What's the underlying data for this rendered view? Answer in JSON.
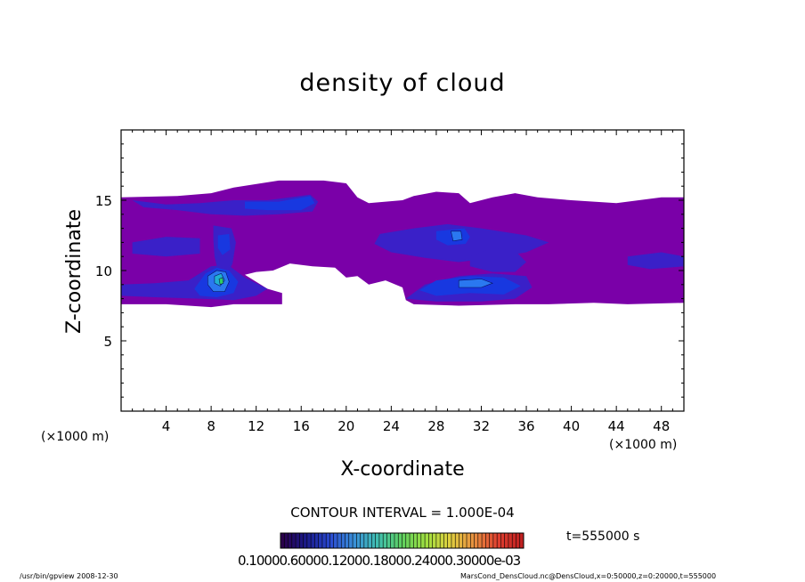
{
  "chart_data": {
    "type": "heatmap",
    "title": "density of cloud",
    "xlabel": "X-coordinate",
    "ylabel": "Z-coordinate",
    "x_unit": "(×1000 m)",
    "y_unit": "(×1000 m)",
    "xlim": [
      0,
      50
    ],
    "ylim": [
      0,
      20
    ],
    "x_ticks": [
      4,
      8,
      12,
      16,
      20,
      24,
      28,
      32,
      36,
      40,
      44,
      48
    ],
    "y_ticks": [
      5,
      10,
      15
    ],
    "contour_interval": "CONTOUR INTERVAL = 1.000E-04",
    "time_label": "t=555000 s",
    "colorbar_labels": "0.10000.60000.12000.18000.24000.30000e-03",
    "colors": {
      "base": "#7a00a8",
      "level2": "#3a20c8",
      "level3": "#1838e0",
      "level4": "#2a78f0",
      "level5": "#20b0d0",
      "level6": "#30d060"
    },
    "colorbar_colors": [
      "#2a004a",
      "#1a1a8a",
      "#2a4ad0",
      "#3a90d8",
      "#40c0b0",
      "#60d060",
      "#a0e040",
      "#e0d040",
      "#e89040",
      "#e04030",
      "#c02020"
    ],
    "regions": [
      {
        "level": 1,
        "poly": [
          [
            0,
            15.2
          ],
          [
            5,
            15.3
          ],
          [
            8,
            15.5
          ],
          [
            10,
            15.9
          ],
          [
            14,
            16.4
          ],
          [
            18,
            16.4
          ],
          [
            20,
            16.2
          ],
          [
            21,
            15.2
          ],
          [
            22,
            14.8
          ],
          [
            25,
            15.0
          ],
          [
            26,
            15.3
          ],
          [
            28,
            15.6
          ],
          [
            30,
            15.5
          ],
          [
            31,
            14.8
          ],
          [
            33,
            15.2
          ],
          [
            35,
            15.5
          ],
          [
            37,
            15.2
          ],
          [
            40,
            15.0
          ],
          [
            44,
            14.8
          ],
          [
            48,
            15.2
          ],
          [
            50,
            15.2
          ],
          [
            50,
            7.7
          ],
          [
            45,
            7.6
          ],
          [
            42,
            7.7
          ],
          [
            38,
            7.6
          ],
          [
            35,
            7.6
          ],
          [
            30,
            7.5
          ],
          [
            26,
            7.6
          ],
          [
            25.3,
            7.9
          ],
          [
            25.0,
            8.8
          ],
          [
            23.5,
            9.3
          ],
          [
            22,
            9.0
          ],
          [
            21,
            9.6
          ],
          [
            20,
            9.5
          ],
          [
            19,
            10.2
          ],
          [
            17,
            10.3
          ],
          [
            15,
            10.5
          ],
          [
            13.5,
            10.0
          ],
          [
            12,
            9.9
          ],
          [
            11,
            9.7
          ],
          [
            13,
            8.7
          ],
          [
            14.3,
            8.4
          ],
          [
            14.3,
            7.6
          ],
          [
            10,
            7.6
          ],
          [
            8,
            7.4
          ],
          [
            4,
            7.6
          ],
          [
            0,
            7.6
          ]
        ]
      },
      {
        "level": 2,
        "poly": [
          [
            1,
            15.0
          ],
          [
            4,
            14.7
          ],
          [
            7,
            14.8
          ],
          [
            10,
            15.0
          ],
          [
            13,
            15.0
          ],
          [
            15,
            15.2
          ],
          [
            16.8,
            15.4
          ],
          [
            17.5,
            14.9
          ],
          [
            17,
            14.2
          ],
          [
            14,
            14.0
          ],
          [
            11,
            13.9
          ],
          [
            8,
            14.0
          ],
          [
            5,
            14.3
          ],
          [
            2,
            14.5
          ]
        ]
      },
      {
        "level": 2,
        "poly": [
          [
            8.2,
            13.2
          ],
          [
            9.8,
            13.0
          ],
          [
            10.2,
            12.0
          ],
          [
            9.9,
            10.5
          ],
          [
            9.6,
            10.0
          ],
          [
            8.6,
            10.0
          ],
          [
            8.3,
            11.0
          ],
          [
            8.2,
            12.2
          ]
        ]
      },
      {
        "level": 2,
        "poly": [
          [
            0,
            9.0
          ],
          [
            3,
            9.1
          ],
          [
            6,
            9.3
          ],
          [
            8,
            10.3
          ],
          [
            9.5,
            10.4
          ],
          [
            11,
            9.5
          ],
          [
            13,
            8.7
          ],
          [
            12,
            8.2
          ],
          [
            10,
            7.9
          ],
          [
            7,
            8.0
          ],
          [
            3,
            8.1
          ],
          [
            0,
            8.2
          ]
        ]
      },
      {
        "level": 2,
        "poly": [
          [
            23,
            12.6
          ],
          [
            26,
            13.0
          ],
          [
            29,
            13.3
          ],
          [
            32,
            13.0
          ],
          [
            36,
            12.5
          ],
          [
            38,
            12.0
          ],
          [
            36,
            11.3
          ],
          [
            33,
            10.9
          ],
          [
            30,
            10.6
          ],
          [
            27,
            10.9
          ],
          [
            24,
            11.3
          ],
          [
            22.5,
            11.9
          ]
        ]
      },
      {
        "level": 2,
        "poly": [
          [
            25.3,
            8.0
          ],
          [
            27,
            9.0
          ],
          [
            30,
            9.6
          ],
          [
            33,
            9.8
          ],
          [
            36,
            9.6
          ],
          [
            36.5,
            8.8
          ],
          [
            35,
            8.0
          ],
          [
            32,
            7.8
          ],
          [
            28,
            7.8
          ]
        ]
      },
      {
        "level": 2,
        "poly": [
          [
            1,
            12.0
          ],
          [
            4,
            12.4
          ],
          [
            7,
            12.3
          ],
          [
            7,
            11.2
          ],
          [
            4,
            11.0
          ],
          [
            1,
            11.2
          ]
        ]
      },
      {
        "level": 2,
        "poly": [
          [
            45,
            11.0
          ],
          [
            48,
            11.3
          ],
          [
            50,
            11.0
          ],
          [
            50,
            10.3
          ],
          [
            47,
            10.1
          ],
          [
            45,
            10.4
          ]
        ]
      },
      {
        "level": 2,
        "poly": [
          [
            31,
            11.0
          ],
          [
            33,
            11.6
          ],
          [
            35,
            11.4
          ],
          [
            36,
            10.6
          ],
          [
            35,
            9.9
          ],
          [
            33,
            9.9
          ],
          [
            31,
            10.3
          ]
        ]
      },
      {
        "level": 3,
        "poly": [
          [
            11,
            14.9
          ],
          [
            14,
            14.9
          ],
          [
            16.8,
            15.3
          ],
          [
            17.2,
            14.8
          ],
          [
            16,
            14.3
          ],
          [
            13,
            14.3
          ],
          [
            11,
            14.4
          ]
        ]
      },
      {
        "level": 3,
        "poly": [
          [
            6.5,
            8.7
          ],
          [
            7.5,
            9.8
          ],
          [
            8.5,
            10.2
          ],
          [
            9.6,
            10.0
          ],
          [
            10.4,
            9.2
          ],
          [
            10.0,
            8.4
          ],
          [
            8.5,
            8.1
          ],
          [
            7,
            8.2
          ]
        ]
      },
      {
        "level": 3,
        "poly": [
          [
            26.5,
            8.6
          ],
          [
            28,
            9.3
          ],
          [
            31,
            9.6
          ],
          [
            34,
            9.5
          ],
          [
            35.5,
            8.9
          ],
          [
            34,
            8.3
          ],
          [
            31,
            8.4
          ],
          [
            28,
            8.2
          ]
        ]
      },
      {
        "level": 3,
        "poly": [
          [
            28,
            12.8
          ],
          [
            30.5,
            13.0
          ],
          [
            31,
            12.4
          ],
          [
            30.6,
            11.9
          ],
          [
            29,
            11.8
          ],
          [
            28,
            12.2
          ]
        ]
      },
      {
        "level": 3,
        "poly": [
          [
            8.6,
            12.5
          ],
          [
            9.6,
            12.6
          ],
          [
            9.7,
            11.5
          ],
          [
            9.0,
            11.1
          ],
          [
            8.6,
            11.6
          ]
        ]
      },
      {
        "level": 4,
        "poly": [
          [
            7.7,
            9.6
          ],
          [
            8.5,
            10.0
          ],
          [
            9.3,
            9.9
          ],
          [
            9.6,
            9.2
          ],
          [
            9.2,
            8.5
          ],
          [
            8.2,
            8.5
          ],
          [
            7.7,
            9.0
          ]
        ]
      },
      {
        "level": 4,
        "poly": [
          [
            30,
            9.3
          ],
          [
            32,
            9.4
          ],
          [
            33,
            9.1
          ],
          [
            32,
            8.8
          ],
          [
            30,
            8.8
          ]
        ]
      },
      {
        "level": 4,
        "poly": [
          [
            29.3,
            12.8
          ],
          [
            30.2,
            12.8
          ],
          [
            30.3,
            12.2
          ],
          [
            29.5,
            12.1
          ]
        ]
      },
      {
        "level": 5,
        "poly": [
          [
            8.3,
            9.6
          ],
          [
            8.9,
            9.8
          ],
          [
            9.2,
            9.3
          ],
          [
            8.8,
            8.9
          ],
          [
            8.3,
            9.1
          ]
        ]
      },
      {
        "level": 6,
        "poly": [
          [
            8.7,
            9.4
          ],
          [
            9.0,
            9.5
          ],
          [
            9.1,
            9.1
          ],
          [
            8.8,
            9.0
          ]
        ]
      }
    ]
  },
  "footer": {
    "left": "/usr/bin/gpview   2008-12-30",
    "right": "MarsCond_DensCloud.nc@DensCloud,x=0:50000,z=0:20000,t=555000"
  }
}
